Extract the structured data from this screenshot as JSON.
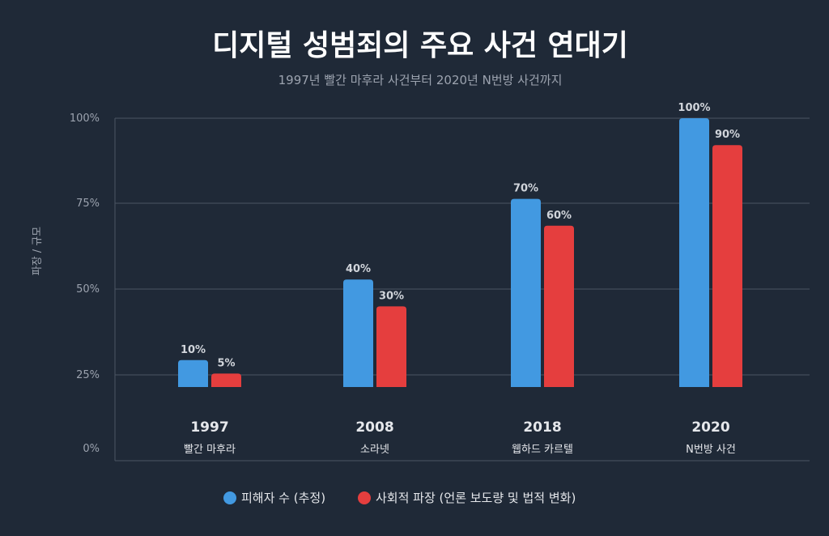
{
  "chart_data": {
    "type": "bar",
    "title": "디지털 성범죄의 주요 사건 연대기",
    "subtitle": "1997년 빨간 마후라 사건부터 2020년 N번방 사건까지",
    "ylabel": "파장 / 규모",
    "xlabel": "",
    "ylim": [
      0,
      100
    ],
    "yticks": [
      "0%",
      "25%",
      "50%",
      "75%",
      "100%"
    ],
    "grid": true,
    "legend_position": "bottom",
    "categories": [
      "1997",
      "2008",
      "2018",
      "2020"
    ],
    "category_sublabels": [
      "빨간 마후라",
      "소라넷",
      "웹하드 카르텔",
      "N번방 사건"
    ],
    "series": [
      {
        "name": "피해자 수 (추정)",
        "color": "#4299e1",
        "values": [
          10,
          40,
          70,
          100
        ],
        "labels": [
          "10%",
          "40%",
          "70%",
          "100%"
        ]
      },
      {
        "name": "사회적 파장 (언론 보도량 및 법적 변화)",
        "color": "#e53e3e",
        "values": [
          5,
          30,
          60,
          90
        ],
        "labels": [
          "5%",
          "30%",
          "60%",
          "90%"
        ]
      }
    ]
  }
}
